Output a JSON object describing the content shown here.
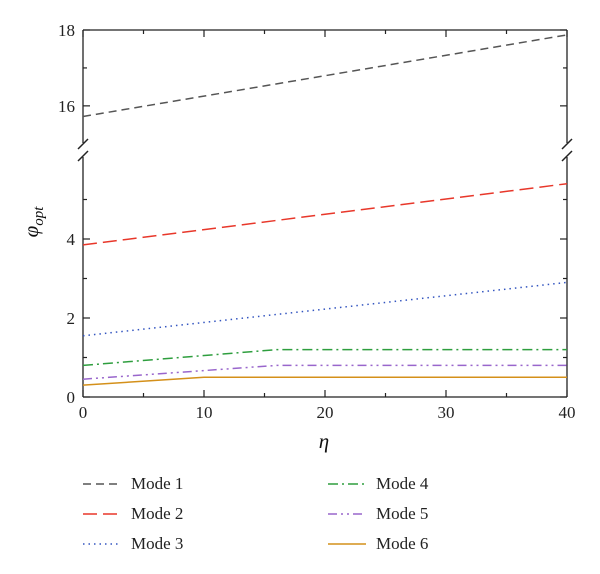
{
  "chart_data": {
    "type": "line",
    "xlabel": "η",
    "ylabel": "φ",
    "ylabel_sub": "opt",
    "xlim": [
      0,
      40
    ],
    "x_ticks": [
      "0",
      "10",
      "20",
      "30",
      "40"
    ],
    "y_break": true,
    "upper_ylim": [
      15.1,
      18
    ],
    "upper_y_ticks": [
      "16",
      "18"
    ],
    "lower_ylim": [
      0,
      6
    ],
    "lower_y_ticks": [
      "0",
      "2",
      "4"
    ],
    "grid": false,
    "legend_position": "bottom",
    "series": [
      {
        "name": "Mode 1",
        "color": "#555555",
        "dash": "8,5",
        "x": [
          0,
          40
        ],
        "y": [
          15.72,
          17.87
        ]
      },
      {
        "name": "Mode 2",
        "color": "#e8372a",
        "dash": "14,6",
        "x": [
          0,
          40
        ],
        "y": [
          3.85,
          5.4
        ]
      },
      {
        "name": "Mode 3",
        "color": "#3355c0",
        "dash": "1.5,4",
        "x": [
          0,
          40
        ],
        "y": [
          1.55,
          2.9
        ]
      },
      {
        "name": "Mode 4",
        "color": "#2e9e3e",
        "dash": "10,4,2,4",
        "x": [
          0,
          16,
          40
        ],
        "y": [
          0.8,
          1.2,
          1.2
        ]
      },
      {
        "name": "Mode 5",
        "color": "#9966cc",
        "dash": "9,4,2,4,2,4",
        "x": [
          0,
          16,
          40
        ],
        "y": [
          0.45,
          0.8,
          0.8
        ]
      },
      {
        "name": "Mode 6",
        "color": "#d4901a",
        "dash": "",
        "x": [
          0,
          10,
          40
        ],
        "y": [
          0.3,
          0.5,
          0.5
        ]
      }
    ]
  }
}
